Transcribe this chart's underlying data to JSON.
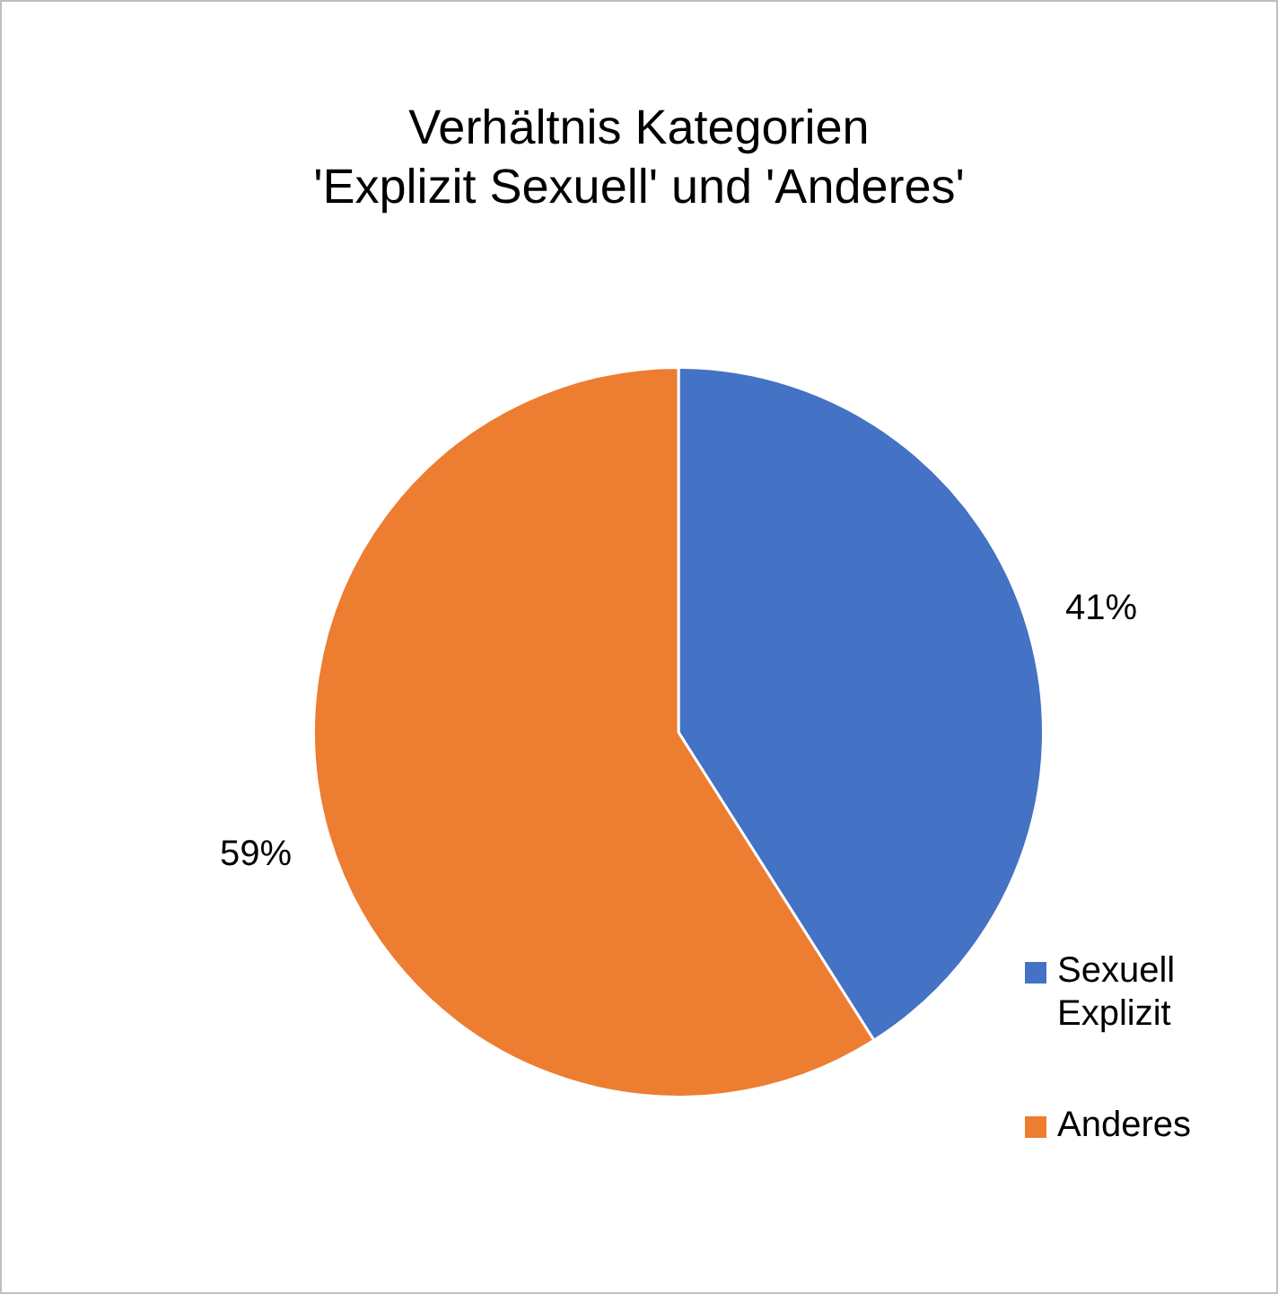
{
  "chart_data": {
    "type": "pie",
    "title": "Verhältnis Kategorien\n'Explizit Sexuell' und 'Anderes'",
    "categories": [
      "Sexuell Explizit",
      "Anderes"
    ],
    "values": [
      41,
      59
    ],
    "colors": [
      "#4472c4",
      "#ed7d31"
    ],
    "value_labels": [
      "41%",
      "59%"
    ],
    "legend": "right"
  }
}
